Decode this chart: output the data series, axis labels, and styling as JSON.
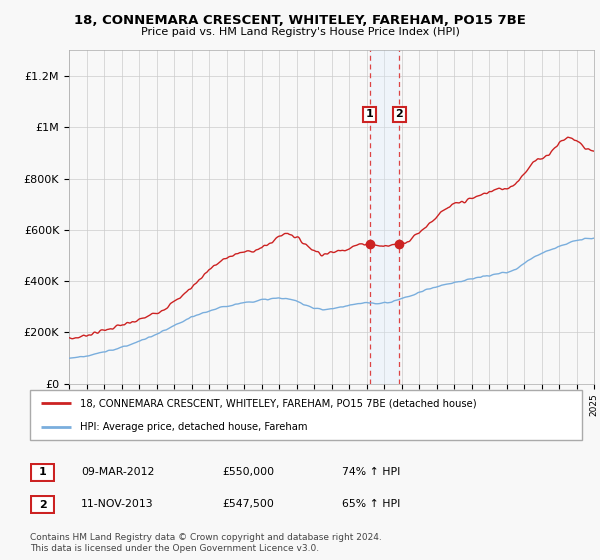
{
  "title": "18, CONNEMARA CRESCENT, WHITELEY, FAREHAM, PO15 7BE",
  "subtitle": "Price paid vs. HM Land Registry's House Price Index (HPI)",
  "legend_line1": "18, CONNEMARA CRESCENT, WHITELEY, FAREHAM, PO15 7BE (detached house)",
  "legend_line2": "HPI: Average price, detached house, Fareham",
  "footer": "Contains HM Land Registry data © Crown copyright and database right 2024.\nThis data is licensed under the Open Government Licence v3.0.",
  "transaction1_label": "1",
  "transaction1_date": "09-MAR-2012",
  "transaction1_price": "£550,000",
  "transaction1_hpi": "74% ↑ HPI",
  "transaction1_year": 2012.18,
  "transaction1_value": 550000,
  "transaction2_label": "2",
  "transaction2_date": "11-NOV-2013",
  "transaction2_price": "£547,500",
  "transaction2_hpi": "65% ↑ HPI",
  "transaction2_year": 2013.87,
  "transaction2_value": 547500,
  "hpi_color": "#7aaedd",
  "price_color": "#cc2222",
  "shading_color": "#ddeeff",
  "grid_color": "#cccccc",
  "background_color": "#f8f8f8",
  "ylim": [
    0,
    1300000
  ],
  "xlim_start": 1995,
  "xlim_end": 2025,
  "yticks": [
    0,
    200000,
    400000,
    600000,
    800000,
    1000000,
    1200000
  ],
  "ytick_labels": [
    "£0",
    "£200K",
    "£400K",
    "£600K",
    "£800K",
    "£1M",
    "£1.2M"
  ],
  "prop_years": [
    1995.0,
    1995.5,
    1996.0,
    1996.5,
    1997.0,
    1997.5,
    1998.0,
    1998.5,
    1999.0,
    1999.5,
    2000.0,
    2000.5,
    2001.0,
    2001.5,
    2002.0,
    2002.5,
    2003.0,
    2003.5,
    2004.0,
    2004.5,
    2005.0,
    2005.5,
    2006.0,
    2006.5,
    2007.0,
    2007.5,
    2008.0,
    2008.5,
    2009.0,
    2009.5,
    2010.0,
    2010.5,
    2011.0,
    2011.5,
    2012.0,
    2012.5,
    2013.0,
    2013.5,
    2014.0,
    2014.5,
    2015.0,
    2015.5,
    2016.0,
    2016.5,
    2017.0,
    2017.5,
    2018.0,
    2018.5,
    2019.0,
    2019.5,
    2020.0,
    2020.5,
    2021.0,
    2021.5,
    2022.0,
    2022.5,
    2023.0,
    2023.5,
    2024.0,
    2024.5,
    2025.0
  ],
  "prop_values": [
    175000,
    180000,
    190000,
    198000,
    208000,
    218000,
    228000,
    235000,
    248000,
    262000,
    278000,
    295000,
    318000,
    345000,
    375000,
    410000,
    445000,
    468000,
    490000,
    505000,
    512000,
    520000,
    528000,
    548000,
    575000,
    590000,
    570000,
    545000,
    520000,
    505000,
    510000,
    520000,
    530000,
    540000,
    548000,
    540000,
    535000,
    542000,
    548000,
    562000,
    590000,
    620000,
    650000,
    678000,
    698000,
    710000,
    720000,
    735000,
    748000,
    758000,
    762000,
    780000,
    820000,
    860000,
    880000,
    900000,
    940000,
    960000,
    950000,
    920000,
    905000
  ],
  "hpi_years": [
    1995.0,
    1995.5,
    1996.0,
    1996.5,
    1997.0,
    1997.5,
    1998.0,
    1998.5,
    1999.0,
    1999.5,
    2000.0,
    2000.5,
    2001.0,
    2001.5,
    2002.0,
    2002.5,
    2003.0,
    2003.5,
    2004.0,
    2004.5,
    2005.0,
    2005.5,
    2006.0,
    2006.5,
    2007.0,
    2007.5,
    2008.0,
    2008.5,
    2009.0,
    2009.5,
    2010.0,
    2010.5,
    2011.0,
    2011.5,
    2012.0,
    2012.5,
    2013.0,
    2013.5,
    2014.0,
    2014.5,
    2015.0,
    2015.5,
    2016.0,
    2016.5,
    2017.0,
    2017.5,
    2018.0,
    2018.5,
    2019.0,
    2019.5,
    2020.0,
    2020.5,
    2021.0,
    2021.5,
    2022.0,
    2022.5,
    2023.0,
    2023.5,
    2024.0,
    2024.5,
    2025.0
  ],
  "hpi_values": [
    100000,
    103000,
    108000,
    115000,
    123000,
    132000,
    142000,
    152000,
    165000,
    178000,
    192000,
    208000,
    225000,
    242000,
    258000,
    272000,
    283000,
    293000,
    302000,
    310000,
    316000,
    321000,
    326000,
    330000,
    334000,
    330000,
    322000,
    308000,
    295000,
    288000,
    292000,
    298000,
    305000,
    310000,
    316000,
    312000,
    315000,
    320000,
    332000,
    342000,
    355000,
    368000,
    378000,
    388000,
    395000,
    400000,
    408000,
    415000,
    422000,
    428000,
    432000,
    445000,
    468000,
    492000,
    510000,
    522000,
    535000,
    548000,
    558000,
    565000,
    568000
  ]
}
